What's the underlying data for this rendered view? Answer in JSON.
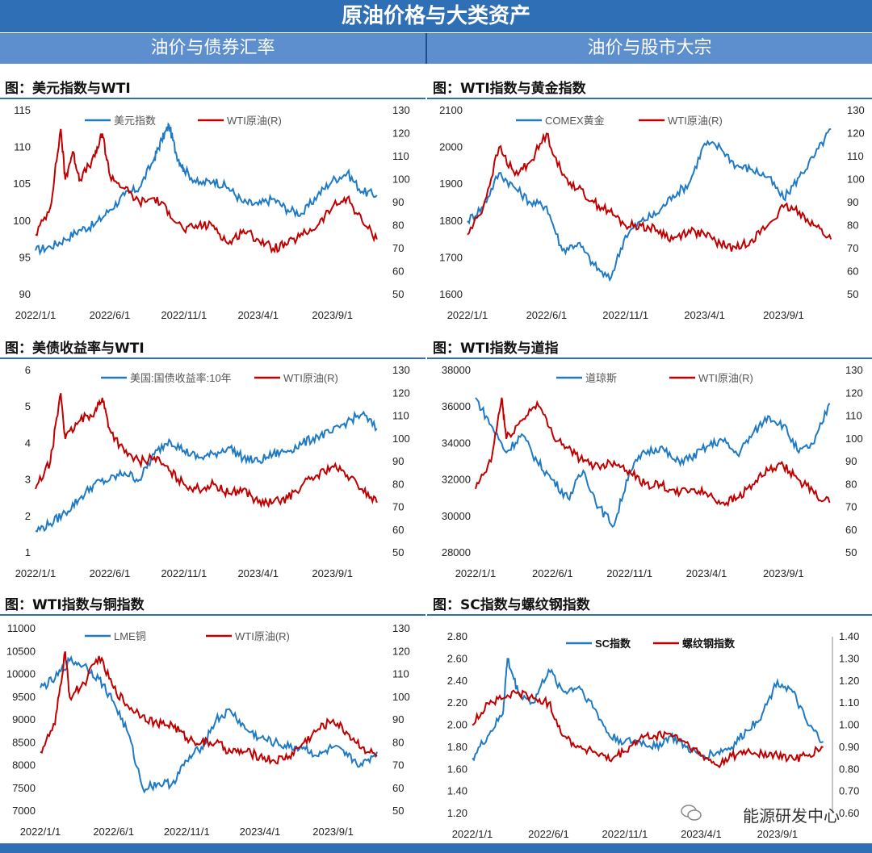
{
  "banner": "原油价格与大类资产",
  "subheaders": {
    "left": "油价与债券汇率",
    "right": "油价与股市大宗"
  },
  "watermark": "能源研发中心",
  "colors": {
    "blue": "#1f7ac5",
    "red": "#c00000",
    "header": "#2f6fb5"
  },
  "chart_data": [
    {
      "id": "c1",
      "type": "line",
      "title": "图：美元指数与WTI",
      "xticks": [
        "2022/1/1",
        "2022/6/1",
        "2022/11/1",
        "2023/4/1",
        "2023/9/1"
      ],
      "x_range": [
        0,
        23.5
      ],
      "left_axis": {
        "min": 90,
        "max": 115,
        "ticks": [
          "115",
          "110",
          "105",
          "100",
          "95",
          "90"
        ]
      },
      "right_axis": {
        "min": 50,
        "max": 130,
        "ticks": [
          "130",
          "120",
          "110",
          "100",
          "90",
          "80",
          "70",
          "60",
          "50"
        ]
      },
      "legend_placement": "top",
      "series": [
        {
          "name": "美元指数",
          "axis": "left",
          "color": "#1f7ac5",
          "x": [
            0,
            1,
            2,
            3,
            4,
            5,
            6,
            7,
            8,
            8.5,
            9,
            9.5,
            10,
            11,
            12,
            13,
            14,
            15,
            16,
            17,
            18,
            19,
            20,
            21,
            22,
            23
          ],
          "y": [
            96,
            96.5,
            97.5,
            98.8,
            99.5,
            101.5,
            103.5,
            104.5,
            108.5,
            111,
            113,
            109,
            107,
            105,
            105.5,
            104.5,
            102.5,
            102.2,
            103,
            101.5,
            101,
            103.5,
            105.5,
            106.5,
            104,
            103.5
          ]
        },
        {
          "name": "WTI原油(R)",
          "axis": "right",
          "color": "#c00000",
          "x": [
            0,
            1,
            1.7,
            2,
            2.5,
            3,
            4,
            4.5,
            5,
            6,
            7,
            8,
            9,
            10,
            11,
            12,
            13,
            14,
            15,
            16,
            17,
            18,
            19,
            20,
            21,
            22,
            23
          ],
          "y": [
            76,
            88,
            122,
            100,
            112,
            100,
            110,
            120,
            102,
            96,
            90,
            92,
            86,
            78,
            80,
            80,
            72,
            78,
            74,
            70,
            72,
            76,
            80,
            88,
            92,
            82,
            74
          ]
        }
      ]
    },
    {
      "id": "c2",
      "type": "line",
      "title": "图：WTI指数与黄金指数",
      "xticks": [
        "2022/1/1",
        "2022/6/1",
        "2022/11/1",
        "2023/4/1",
        "2023/9/1"
      ],
      "x_range": [
        0,
        23.5
      ],
      "left_axis": {
        "min": 1600,
        "max": 2100,
        "ticks": [
          "2100",
          "2000",
          "1900",
          "1800",
          "1700",
          "1600"
        ]
      },
      "right_axis": {
        "min": 50,
        "max": 130,
        "ticks": [
          "130",
          "120",
          "110",
          "100",
          "90",
          "80",
          "70",
          "60",
          "50"
        ]
      },
      "legend_placement": "top",
      "series": [
        {
          "name": "COMEX黄金",
          "axis": "left",
          "color": "#1f7ac5",
          "x": [
            0,
            1,
            2,
            3,
            4,
            5,
            6,
            7,
            8,
            9,
            10,
            11,
            12,
            13,
            14,
            15,
            16,
            17,
            18,
            19,
            20,
            21,
            22,
            23
          ],
          "y": [
            1800,
            1840,
            1930,
            1890,
            1850,
            1840,
            1720,
            1740,
            1680,
            1640,
            1760,
            1800,
            1820,
            1870,
            1900,
            2010,
            2000,
            1950,
            1940,
            1920,
            1860,
            1920,
            1980,
            2050
          ]
        },
        {
          "name": "WTI原油(R)",
          "axis": "right",
          "color": "#c00000",
          "x": [
            0,
            1,
            2,
            3,
            4,
            5,
            6,
            7,
            8,
            9,
            10,
            11,
            12,
            13,
            14,
            15,
            16,
            17,
            18,
            19,
            20,
            21,
            22,
            23
          ],
          "y": [
            76,
            88,
            114,
            102,
            108,
            120,
            102,
            96,
            90,
            86,
            80,
            80,
            78,
            74,
            78,
            76,
            72,
            70,
            74,
            80,
            88,
            86,
            80,
            74
          ]
        }
      ]
    },
    {
      "id": "c3",
      "type": "line",
      "title": "图：美债收益率与WTI",
      "xticks": [
        "2022/1/1",
        "2022/6/1",
        "2022/11/1",
        "2023/4/1",
        "2023/9/1"
      ],
      "x_range": [
        0,
        23.5
      ],
      "left_axis": {
        "min": 1,
        "max": 6,
        "ticks": [
          "6",
          "5",
          "4",
          "3",
          "2",
          "1"
        ]
      },
      "right_axis": {
        "min": 50,
        "max": 130,
        "ticks": [
          "130",
          "120",
          "110",
          "100",
          "90",
          "80",
          "70",
          "60",
          "50"
        ]
      },
      "legend_placement": "top",
      "series": [
        {
          "name": "美国:国债收益率:10年",
          "axis": "left",
          "color": "#1f7ac5",
          "x": [
            0,
            1,
            2,
            3,
            4,
            5,
            6,
            7,
            8,
            9,
            10,
            11,
            12,
            13,
            14,
            15,
            16,
            17,
            18,
            19,
            20,
            21,
            22,
            23
          ],
          "y": [
            1.6,
            1.8,
            2.1,
            2.5,
            2.9,
            3.0,
            3.2,
            3.0,
            3.7,
            4.1,
            3.8,
            3.6,
            3.7,
            3.9,
            3.6,
            3.5,
            3.7,
            3.8,
            4.0,
            4.2,
            4.3,
            4.6,
            4.8,
            4.4
          ]
        },
        {
          "name": "WTI原油(R)",
          "axis": "right",
          "color": "#c00000",
          "x": [
            0,
            1,
            1.7,
            2,
            3,
            4,
            4.5,
            5,
            6,
            7,
            8,
            9,
            10,
            11,
            12,
            13,
            14,
            15,
            16,
            17,
            18,
            19,
            20,
            21,
            22,
            23
          ],
          "y": [
            78,
            90,
            120,
            100,
            108,
            112,
            118,
            104,
            94,
            90,
            92,
            86,
            80,
            78,
            80,
            76,
            78,
            72,
            72,
            74,
            80,
            84,
            88,
            84,
            78,
            72
          ]
        }
      ]
    },
    {
      "id": "c4",
      "type": "line",
      "title": "图：WTI指数与道指",
      "xticks": [
        "2022/1/1",
        "2022/6/1",
        "2022/11/1",
        "2023/4/1",
        "2023/9/1"
      ],
      "x_range": [
        0,
        23.5
      ],
      "left_axis": {
        "min": 28000,
        "max": 38000,
        "ticks": [
          "38000",
          "36000",
          "34000",
          "32000",
          "30000",
          "28000"
        ]
      },
      "right_axis": {
        "min": 50,
        "max": 130,
        "ticks": [
          "130",
          "120",
          "110",
          "100",
          "90",
          "80",
          "70",
          "60",
          "50"
        ]
      },
      "legend_placement": "top",
      "series": [
        {
          "name": "道琼斯",
          "axis": "left",
          "color": "#1f7ac5",
          "x": [
            0,
            1,
            2,
            3,
            4,
            5,
            6,
            7,
            8,
            9,
            10,
            11,
            12,
            13,
            14,
            15,
            16,
            17,
            18,
            19,
            20,
            21,
            22,
            23
          ],
          "y": [
            36500,
            35000,
            33500,
            34500,
            33000,
            32000,
            31000,
            32500,
            30500,
            29500,
            32500,
            33500,
            33800,
            33000,
            33200,
            33800,
            34200,
            33400,
            34500,
            35500,
            35000,
            33500,
            34000,
            36200
          ]
        },
        {
          "name": "WTI原油(R)",
          "axis": "right",
          "color": "#c00000",
          "x": [
            0,
            1,
            1.7,
            2,
            3,
            4,
            5,
            6,
            7,
            8,
            9,
            10,
            11,
            12,
            13,
            14,
            15,
            16,
            17,
            18,
            19,
            20,
            21,
            22,
            23
          ],
          "y": [
            78,
            90,
            118,
            100,
            108,
            116,
            102,
            96,
            90,
            88,
            90,
            86,
            80,
            80,
            76,
            78,
            76,
            72,
            74,
            80,
            86,
            88,
            82,
            76,
            72
          ]
        }
      ]
    },
    {
      "id": "c5",
      "type": "line",
      "title": "图：WTI指数与铜指数",
      "xticks": [
        "2022/1/1",
        "2022/6/1",
        "2022/11/1",
        "2023/4/1",
        "2023/9/1"
      ],
      "x_range": [
        0,
        23.5
      ],
      "left_axis": {
        "min": 7000,
        "max": 11000,
        "ticks": [
          "11000",
          "10500",
          "10000",
          "9500",
          "9000",
          "8500",
          "8000",
          "7500",
          "7000"
        ]
      },
      "right_axis": {
        "min": 50,
        "max": 130,
        "ticks": [
          "130",
          "120",
          "110",
          "100",
          "90",
          "80",
          "70",
          "60",
          "50"
        ]
      },
      "legend_placement": "top",
      "series": [
        {
          "name": "LME铜",
          "axis": "left",
          "color": "#1f7ac5",
          "x": [
            0,
            1,
            2,
            3,
            4,
            5,
            6,
            7,
            8,
            9,
            10,
            11,
            12,
            13,
            14,
            15,
            16,
            17,
            18,
            19,
            20,
            21,
            22,
            23
          ],
          "y": [
            9700,
            9900,
            10300,
            10200,
            9900,
            9400,
            8700,
            7500,
            7600,
            7600,
            8100,
            8400,
            9000,
            9200,
            8800,
            8600,
            8500,
            8400,
            8400,
            8200,
            8400,
            8200,
            8000,
            8300
          ]
        },
        {
          "name": "WTI原油(R)",
          "axis": "right",
          "color": "#c00000",
          "x": [
            0,
            1,
            1.7,
            2,
            3,
            4,
            5,
            6,
            7,
            8,
            9,
            10,
            11,
            12,
            13,
            14,
            15,
            16,
            17,
            18,
            19,
            20,
            21,
            22,
            23
          ],
          "y": [
            76,
            88,
            120,
            100,
            106,
            118,
            104,
            96,
            92,
            88,
            88,
            82,
            80,
            80,
            76,
            76,
            74,
            72,
            74,
            80,
            86,
            90,
            84,
            78,
            74
          ]
        }
      ]
    },
    {
      "id": "c6",
      "type": "line",
      "title": "图：SC指数与螺纹钢指数",
      "xticks": [
        "2022/1/1",
        "2022/6/1",
        "2022/11/1",
        "2023/4/1",
        "2023/9/1"
      ],
      "x_range": [
        0,
        23.5
      ],
      "left_axis": {
        "min": 1.2,
        "max": 2.8,
        "ticks": [
          "2.80",
          "2.60",
          "2.40",
          "2.20",
          "2.00",
          "1.80",
          "1.60",
          "1.40",
          "1.20"
        ]
      },
      "right_axis": {
        "min": 0.6,
        "max": 1.4,
        "ticks": [
          "1.40",
          "1.30",
          "1.20",
          "1.10",
          "1.00",
          "0.90",
          "0.80",
          "0.70",
          "0.60"
        ]
      },
      "legend_placement": "top",
      "series": [
        {
          "name": "SC指数",
          "axis": "left",
          "color": "#1f7ac5",
          "x": [
            0,
            1,
            2,
            2.3,
            3,
            4,
            5,
            6,
            7,
            8,
            9,
            10,
            11,
            12,
            13,
            14,
            15,
            16,
            17,
            18,
            19,
            20,
            21,
            22,
            23
          ],
          "y": [
            1.7,
            1.9,
            2.1,
            2.6,
            2.3,
            2.2,
            2.5,
            2.3,
            2.35,
            2.15,
            1.9,
            1.85,
            1.85,
            1.8,
            1.9,
            1.8,
            1.72,
            1.75,
            1.8,
            1.95,
            2.1,
            2.4,
            2.3,
            2.0,
            1.85
          ]
        },
        {
          "name": "螺纹钢指数",
          "axis": "right",
          "color": "#c00000",
          "x": [
            0,
            1,
            2,
            3,
            4,
            5,
            6,
            7,
            8,
            9,
            10,
            11,
            12,
            13,
            14,
            15,
            16,
            17,
            18,
            19,
            20,
            21,
            22,
            23
          ],
          "y": [
            1.0,
            1.1,
            1.12,
            1.15,
            1.12,
            1.1,
            0.95,
            0.9,
            0.88,
            0.84,
            0.88,
            0.94,
            0.95,
            0.96,
            0.92,
            0.86,
            0.82,
            0.86,
            0.88,
            0.87,
            0.86,
            0.85,
            0.86,
            0.9
          ]
        }
      ]
    }
  ]
}
